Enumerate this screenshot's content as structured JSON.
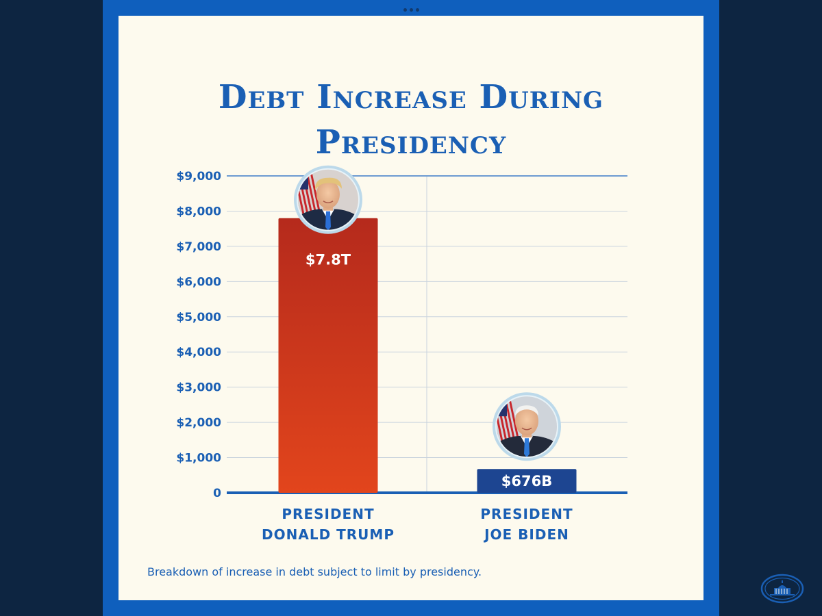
{
  "title_line1": "Debt Increase During",
  "title_line2": "Presidency",
  "caption": "Breakdown of increase in debt subject to limit by presidency.",
  "colors": {
    "background": "#0d2541",
    "frame": "#0f5fbd",
    "card": "#fdfaee",
    "accent": "#1a5fb4",
    "bar_trump_top": "#b52a1c",
    "bar_trump_bottom": "#e2451c",
    "bar_biden": "#1d4591",
    "gridline": "#c9d3dd"
  },
  "icons": [
    "president-portrait-icon",
    "white-house-seal-icon",
    "more-dots-icon"
  ],
  "chart_data": {
    "type": "bar",
    "title": "Debt Increase During Presidency",
    "xlabel": "",
    "ylabel": "",
    "ylim": [
      0,
      9000
    ],
    "yticks": [
      0,
      1000,
      2000,
      3000,
      4000,
      5000,
      6000,
      7000,
      8000,
      9000
    ],
    "ytick_labels": [
      "0",
      "$1,000",
      "$2,000",
      "$3,000",
      "$4,000",
      "$5,000",
      "$6,000",
      "$7,000",
      "$8,000",
      "$9,000"
    ],
    "grid": true,
    "legend": "none",
    "categories": [
      "PRESIDENT\nDONALD TRUMP",
      "PRESIDENT\nJOE BIDEN"
    ],
    "category_lines": [
      [
        "PRESIDENT",
        "DONALD TRUMP"
      ],
      [
        "PRESIDENT",
        "JOE BIDEN"
      ]
    ],
    "values": [
      7800,
      676
    ],
    "data_labels": [
      "$7.8T",
      "$676B"
    ]
  }
}
